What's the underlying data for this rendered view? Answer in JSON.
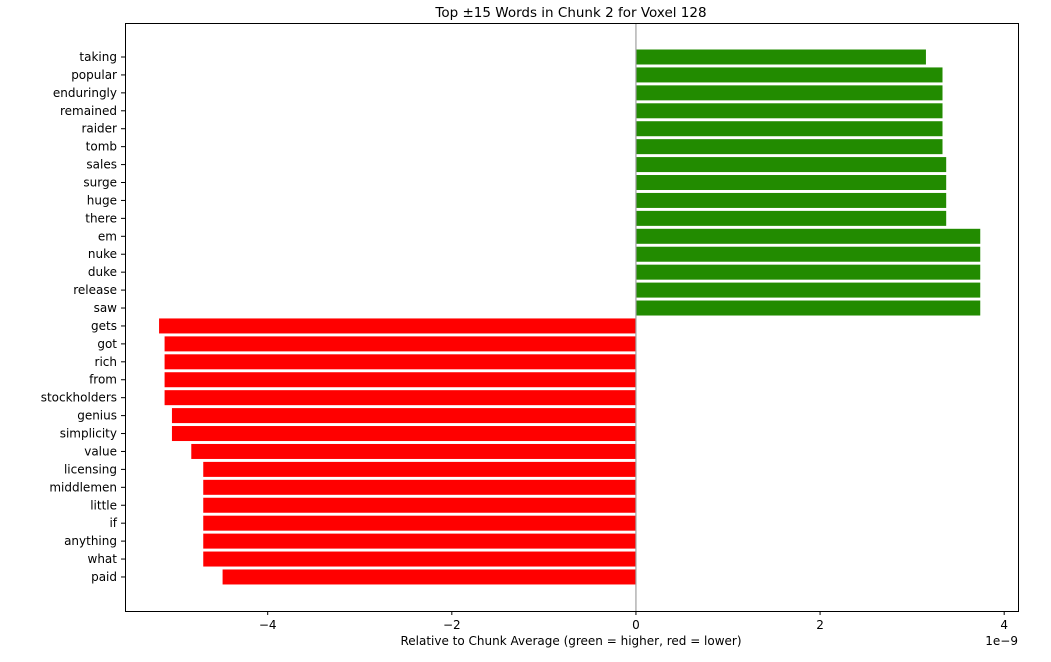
{
  "chart_data": {
    "type": "bar",
    "orientation": "horizontal",
    "title": "Top ±15 Words in Chunk 2 for Voxel 128",
    "xlabel": "Relative to Chunk Average (green = higher, red = lower)",
    "ylabel": "",
    "x_offset_label": "1e−9",
    "xlim": [
      -5.55,
      4.15
    ],
    "xticks": [
      -4,
      -2,
      0,
      2,
      4
    ],
    "xtick_labels": [
      "−4",
      "−2",
      "0",
      "2",
      "4"
    ],
    "grid": false,
    "legend": "none",
    "categories": [
      "taking",
      "popular",
      "enduringly",
      "remained",
      "raider",
      "tomb",
      "sales",
      "surge",
      "huge",
      "there",
      "em",
      "nuke",
      "duke",
      "release",
      "saw",
      "gets",
      "got",
      "rich",
      "from",
      "stockholders",
      "genius",
      "simplicity",
      "value",
      "licensing",
      "middlemen",
      "little",
      "if",
      "anything",
      "what",
      "paid"
    ],
    "values": [
      3.15,
      3.33,
      3.33,
      3.33,
      3.33,
      3.33,
      3.37,
      3.37,
      3.37,
      3.37,
      3.74,
      3.74,
      3.74,
      3.74,
      3.74,
      -5.18,
      -5.12,
      -5.12,
      -5.12,
      -5.12,
      -5.04,
      -5.04,
      -4.83,
      -4.7,
      -4.7,
      -4.7,
      -4.7,
      -4.7,
      -4.7,
      -4.49
    ],
    "colors": {
      "positive": "#228B00",
      "negative": "#FF0000",
      "zero_line": "#a0a0a0"
    }
  }
}
